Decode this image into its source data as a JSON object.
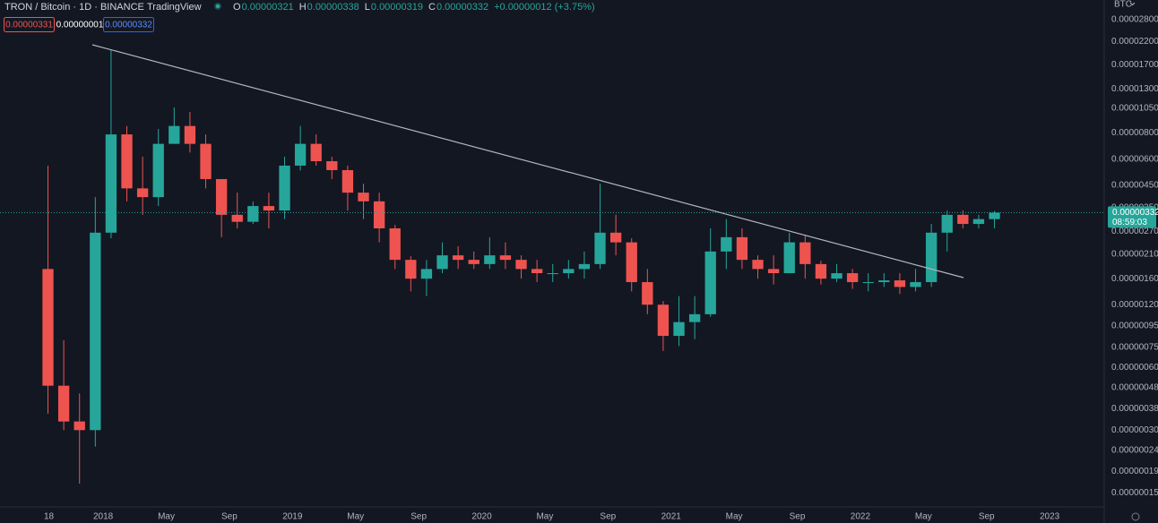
{
  "toolbar": {
    "symbol": "TRON / Bitcoin · 1D · BINANCE",
    "source": "TradingView",
    "ohlc": [
      {
        "letter": "O",
        "value": "0.00000321"
      },
      {
        "letter": "H",
        "value": "0.00000338"
      },
      {
        "letter": "L",
        "value": "0.00000319"
      },
      {
        "letter": "C",
        "value": "0.00000332"
      }
    ],
    "change": "+0.00000012 (+3.75%)",
    "sell": "0.00000331",
    "spread": "0.00000001",
    "buy": "0.00000332"
  },
  "price_scale": {
    "currency": "BTC",
    "last_price": "0.00000332",
    "countdown": "08:59:03"
  },
  "chart_data": {
    "type": "candlestick",
    "log_scale": true,
    "grid": false,
    "up_color": "#26a69a",
    "down_color": "#ef5350",
    "x": [
      "2017-09",
      "2017-10",
      "2017-11",
      "2017-12",
      "2018-01",
      "2018-02",
      "2018-03",
      "2018-04",
      "2018-05",
      "2018-06",
      "2018-07",
      "2018-08",
      "2018-09",
      "2018-10",
      "2018-11",
      "2018-12",
      "2019-01",
      "2019-02",
      "2019-03",
      "2019-04",
      "2019-05",
      "2019-06",
      "2019-07",
      "2019-08",
      "2019-09",
      "2019-10",
      "2019-11",
      "2019-12",
      "2020-01",
      "2020-02",
      "2020-03",
      "2020-04",
      "2020-05",
      "2020-06",
      "2020-07",
      "2020-08",
      "2020-09",
      "2020-10",
      "2020-11",
      "2020-12",
      "2021-01",
      "2021-02",
      "2021-03",
      "2021-04",
      "2021-05",
      "2021-06",
      "2021-07",
      "2021-08",
      "2021-09",
      "2021-10",
      "2021-11",
      "2021-12",
      "2022-01",
      "2022-02",
      "2022-03",
      "2022-04",
      "2022-05",
      "2022-06",
      "2022-07",
      "2022-08",
      "2022-09"
    ],
    "open": [
      1.78e-06,
      4.9e-07,
      3.3e-07,
      3e-07,
      2.66e-06,
      7.88e-06,
      4.34e-06,
      3.94e-06,
      7.1e-06,
      8.65e-06,
      7.1e-06,
      4.81e-06,
      3.24e-06,
      3e-06,
      3.57e-06,
      3.4e-06,
      5.58e-06,
      7.1e-06,
      5.86e-06,
      5.31e-06,
      4.14e-06,
      3.76e-06,
      2.79e-06,
      1.97e-06,
      1.6e-06,
      1.78e-06,
      2.07e-06,
      1.97e-06,
      1.88e-06,
      2.07e-06,
      1.97e-06,
      1.78e-06,
      1.7e-06,
      1.7e-06,
      1.78e-06,
      1.88e-06,
      2.66e-06,
      2.39e-06,
      1.54e-06,
      1.2e-06,
      8.5e-07,
      9.9e-07,
      1.08e-06,
      2.16e-06,
      2.53e-06,
      1.97e-06,
      1.78e-06,
      1.7e-06,
      2.39e-06,
      1.88e-06,
      1.6e-06,
      1.7e-06,
      1.54e-06,
      1.54e-06,
      1.57e-06,
      1.46e-06,
      1.54e-06,
      2.66e-06,
      3.24e-06,
      2.93e-06,
      3.09e-06
    ],
    "high": [
      5.58e-06,
      8.1e-07,
      4.5e-07,
      3.94e-06,
      2e-05,
      8.65e-06,
      6.16e-06,
      8.37e-06,
      1.061e-05,
      1.01e-05,
      7.88e-06,
      4.81e-06,
      4.14e-06,
      3.76e-06,
      4.14e-06,
      6.16e-06,
      8.65e-06,
      7.88e-06,
      6.16e-06,
      5.58e-06,
      4.57e-06,
      4.14e-06,
      2.9e-06,
      2.05e-06,
      1.97e-06,
      2.39e-06,
      2.29e-06,
      2.16e-06,
      2.53e-06,
      2.39e-06,
      2.07e-06,
      1.97e-06,
      1.88e-06,
      1.97e-06,
      2.16e-06,
      4.57e-06,
      3.24e-06,
      2.5e-06,
      1.78e-06,
      1.25e-06,
      1.32e-06,
      1.32e-06,
      2.79e-06,
      3.09e-06,
      2.79e-06,
      2.07e-06,
      2.07e-06,
      2.66e-06,
      2.6e-06,
      1.95e-06,
      1.88e-06,
      1.78e-06,
      1.7e-06,
      1.7e-06,
      1.7e-06,
      1.78e-06,
      2.93e-06,
      3.4e-06,
      3.4e-06,
      3.24e-06,
      3.38e-06
    ],
    "low": [
      3.6e-07,
      3e-07,
      1.66e-07,
      2.5e-07,
      2.5e-06,
      3.76e-06,
      3.24e-06,
      3.57e-06,
      7.1e-06,
      6.45e-06,
      4.34e-06,
      2.53e-06,
      2.79e-06,
      2.93e-06,
      2.79e-06,
      3.09e-06,
      5.29e-06,
      5.58e-06,
      4.81e-06,
      3.4e-06,
      3.09e-06,
      2.39e-06,
      1.78e-06,
      1.39e-06,
      1.32e-06,
      1.7e-06,
      1.78e-06,
      1.78e-06,
      1.78e-06,
      1.78e-06,
      1.6e-06,
      1.54e-06,
      1.54e-06,
      1.6e-06,
      1.6e-06,
      1.78e-06,
      2.07e-06,
      1.39e-06,
      1.08e-06,
      7.2e-07,
      7.6e-07,
      8.2e-07,
      1.05e-06,
      1.78e-06,
      1.78e-06,
      1.6e-06,
      1.5e-06,
      1.7e-06,
      1.6e-06,
      1.5e-06,
      1.54e-06,
      1.43e-06,
      1.39e-06,
      1.46e-06,
      1.35e-06,
      1.39e-06,
      1.46e-06,
      2.16e-06,
      2.79e-06,
      2.79e-06,
      2.79e-06
    ],
    "close": [
      4.9e-07,
      3.3e-07,
      3e-07,
      2.66e-06,
      7.88e-06,
      4.34e-06,
      3.94e-06,
      7.1e-06,
      8.65e-06,
      7.1e-06,
      4.81e-06,
      3.24e-06,
      3e-06,
      3.57e-06,
      3.4e-06,
      5.58e-06,
      7.1e-06,
      5.86e-06,
      5.31e-06,
      4.14e-06,
      3.76e-06,
      2.79e-06,
      1.97e-06,
      1.6e-06,
      1.78e-06,
      2.07e-06,
      1.97e-06,
      1.88e-06,
      2.07e-06,
      1.97e-06,
      1.78e-06,
      1.7e-06,
      1.7e-06,
      1.78e-06,
      1.88e-06,
      2.66e-06,
      2.39e-06,
      1.54e-06,
      1.2e-06,
      8.5e-07,
      9.9e-07,
      1.08e-06,
      2.16e-06,
      2.53e-06,
      1.97e-06,
      1.78e-06,
      1.7e-06,
      2.39e-06,
      1.88e-06,
      1.6e-06,
      1.7e-06,
      1.54e-06,
      1.54e-06,
      1.57e-06,
      1.46e-06,
      1.54e-06,
      2.66e-06,
      3.24e-06,
      2.93e-06,
      3.09e-06,
      3.32e-06
    ],
    "xlim": [
      "2017-06-15",
      "2023-04-15"
    ],
    "xticks": [
      {
        "value": "2017-09-18",
        "label": "18"
      },
      {
        "value": "2018-01",
        "label": "2018"
      },
      {
        "value": "2018-05",
        "label": "May"
      },
      {
        "value": "2018-09",
        "label": "Sep"
      },
      {
        "value": "2019-01",
        "label": "2019"
      },
      {
        "value": "2019-05",
        "label": "May"
      },
      {
        "value": "2019-09",
        "label": "Sep"
      },
      {
        "value": "2020-01",
        "label": "2020"
      },
      {
        "value": "2020-05",
        "label": "May"
      },
      {
        "value": "2020-09",
        "label": "Sep"
      },
      {
        "value": "2021-01",
        "label": "2021"
      },
      {
        "value": "2021-05",
        "label": "May"
      },
      {
        "value": "2021-09",
        "label": "Sep"
      },
      {
        "value": "2022-01",
        "label": "2022"
      },
      {
        "value": "2022-05",
        "label": "May"
      },
      {
        "value": "2022-09",
        "label": "Sep"
      },
      {
        "value": "2023-01",
        "label": "2023"
      }
    ],
    "ylim": [
      1.297e-07,
      3.481e-05
    ],
    "yticks": [
      {
        "value": 2.8e-05,
        "label": "0.00002800"
      },
      {
        "value": 2.2e-05,
        "label": "0.00002200"
      },
      {
        "value": 1.7e-05,
        "label": "0.00001700"
      },
      {
        "value": 1.3e-05,
        "label": "0.00001300"
      },
      {
        "value": 1.05e-05,
        "label": "0.00001050"
      },
      {
        "value": 8e-06,
        "label": "0.00000800"
      },
      {
        "value": 6e-06,
        "label": "0.00000600"
      },
      {
        "value": 4.5e-06,
        "label": "0.00000450"
      },
      {
        "value": 3.5e-06,
        "label": "0.00000350"
      },
      {
        "value": 2.7e-06,
        "label": "0.00000270"
      },
      {
        "value": 2.1e-06,
        "label": "0.00000210"
      },
      {
        "value": 1.6e-06,
        "label": "0.00000160"
      },
      {
        "value": 1.2e-06,
        "label": "0.00000120"
      },
      {
        "value": 9.5e-07,
        "label": "0.00000095"
      },
      {
        "value": 7.5e-07,
        "label": "0.00000075"
      },
      {
        "value": 6e-07,
        "label": "0.00000060"
      },
      {
        "value": 4.8e-07,
        "label": "0.00000048"
      },
      {
        "value": 3.8e-07,
        "label": "0.00000038"
      },
      {
        "value": 3e-07,
        "label": "0.00000030"
      },
      {
        "value": 2.4e-07,
        "label": "0.00000024"
      },
      {
        "value": 1.9e-07,
        "label": "0.00000019"
      },
      {
        "value": 1.5e-07,
        "label": "0.00000015"
      }
    ]
  }
}
